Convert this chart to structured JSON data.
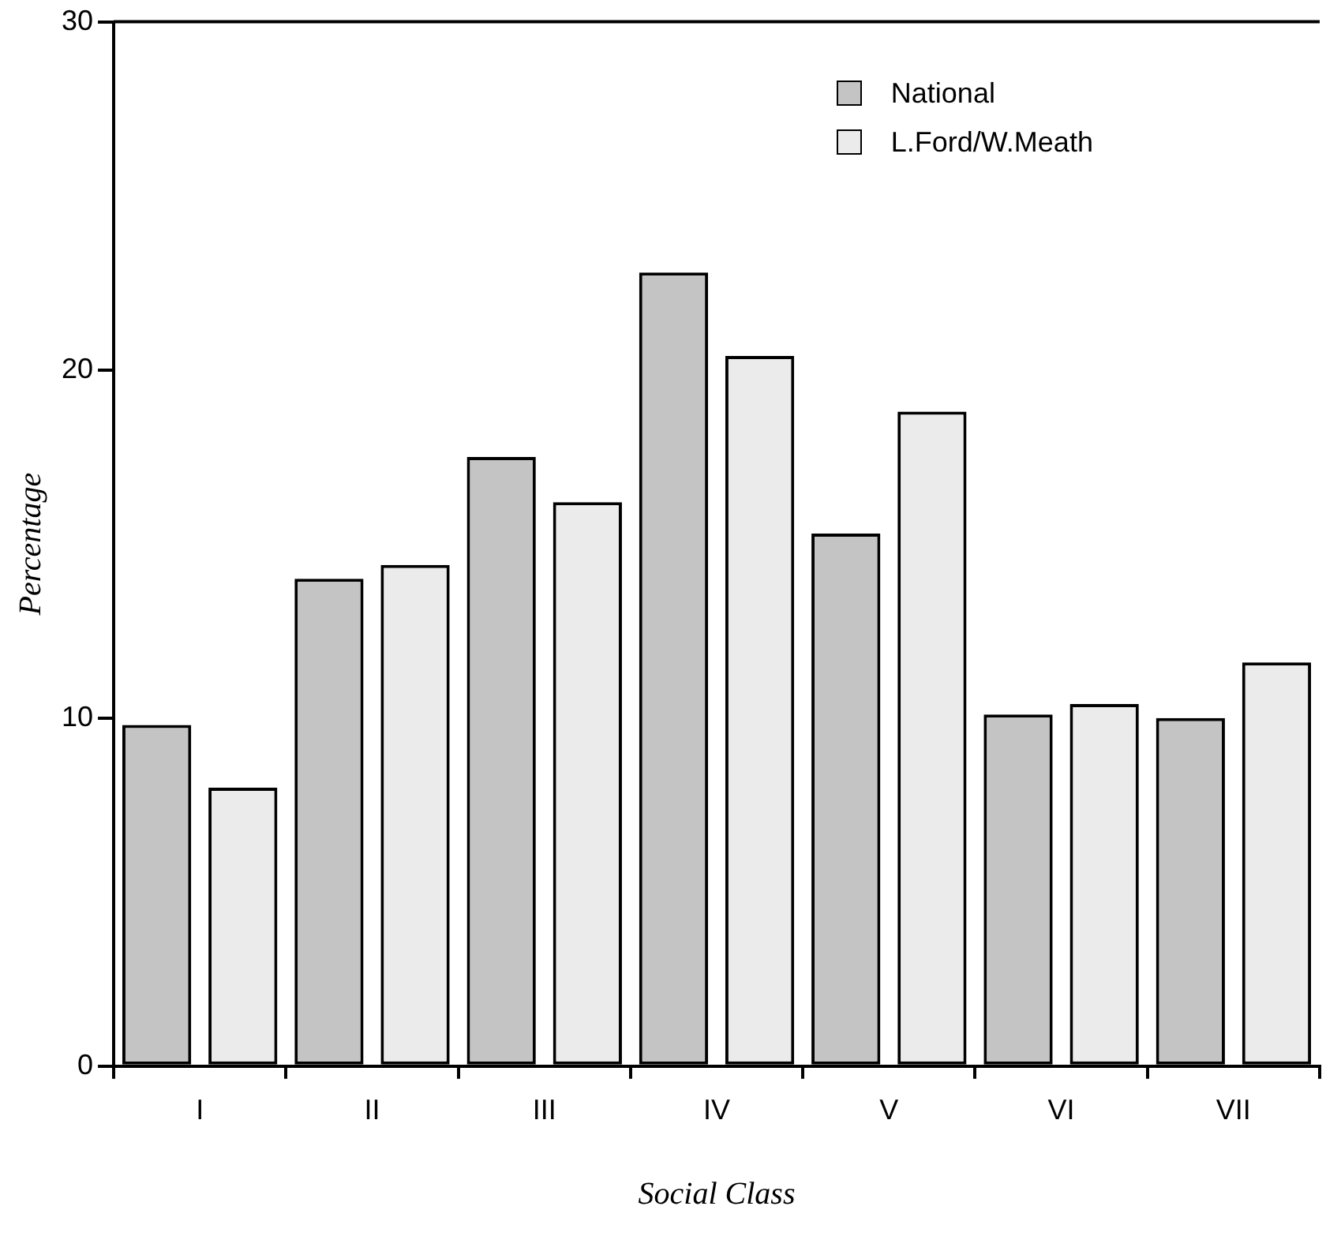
{
  "chart_data": {
    "type": "bar",
    "xlabel": "Social Class",
    "ylabel": "Percentage",
    "categories": [
      "I",
      "II",
      "III",
      "IV",
      "V",
      "VI",
      "VII"
    ],
    "series": [
      {
        "name": "National",
        "color": "#c4c4c4",
        "values": [
          9.8,
          14.0,
          17.5,
          22.8,
          15.3,
          10.1,
          10.0
        ]
      },
      {
        "name": "L.Ford/W.Meath",
        "color": "#ebebeb",
        "values": [
          8.0,
          14.4,
          16.2,
          20.4,
          18.8,
          10.4,
          11.6
        ]
      }
    ],
    "ylim": [
      0,
      30
    ],
    "yticks": [
      0,
      10,
      20,
      30
    ],
    "grid": false,
    "legend": "top right"
  }
}
